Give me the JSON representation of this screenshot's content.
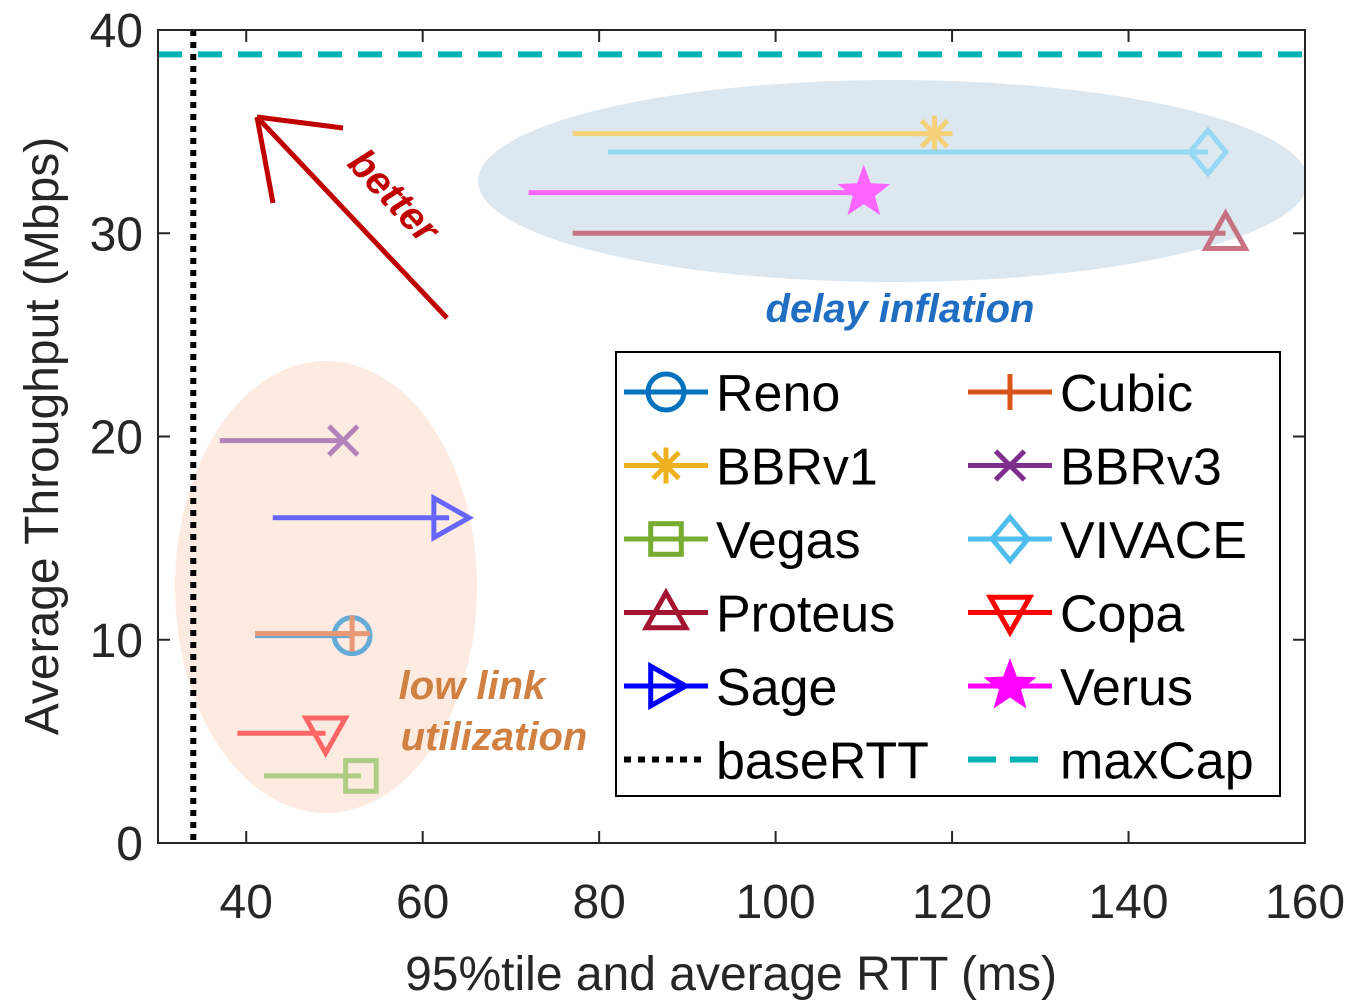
{
  "chart_data": {
    "type": "scatter",
    "xlabel": "95%tile and average RTT (ms)",
    "ylabel": "Average Throughput (Mbps)",
    "xlim": [
      30,
      160
    ],
    "ylim": [
      0,
      40
    ],
    "xticks": [
      40,
      60,
      80,
      100,
      120,
      140,
      160
    ],
    "yticks": [
      0,
      10,
      20,
      30,
      40
    ],
    "grid": false,
    "legend_position": "bottom-right",
    "series": [
      {
        "name": "Reno",
        "color": "#0072BD",
        "marker": "circle",
        "avg_rtt": 41,
        "p95_rtt": 52,
        "throughput": 10.2
      },
      {
        "name": "Cubic",
        "color": "#D95319",
        "marker": "plus",
        "avg_rtt": 41,
        "p95_rtt": 52,
        "throughput": 10.3
      },
      {
        "name": "BBRv1",
        "color": "#EDB120",
        "marker": "asterisk",
        "avg_rtt": 77,
        "p95_rtt": 118,
        "throughput": 34.9
      },
      {
        "name": "BBRv3",
        "color": "#7E2F8E",
        "marker": "x",
        "avg_rtt": 37,
        "p95_rtt": 51,
        "throughput": 19.8
      },
      {
        "name": "Vegas",
        "color": "#77AC30",
        "marker": "square",
        "avg_rtt": 42,
        "p95_rtt": 53,
        "throughput": 3.3
      },
      {
        "name": "VIVACE",
        "color": "#4DBEEE",
        "marker": "diamond",
        "avg_rtt": 81,
        "p95_rtt": 149,
        "throughput": 34.0
      },
      {
        "name": "Proteus",
        "color": "#A2142F",
        "marker": "triangle-up",
        "avg_rtt": 77,
        "p95_rtt": 151,
        "throughput": 30.0
      },
      {
        "name": "Copa",
        "color": "#FF0000",
        "marker": "triangle-down",
        "avg_rtt": 39,
        "p95_rtt": 49,
        "throughput": 5.4
      },
      {
        "name": "Sage",
        "color": "#0000FF",
        "marker": "triangle-right",
        "avg_rtt": 43,
        "p95_rtt": 63,
        "throughput": 16.0
      },
      {
        "name": "Verus",
        "color": "#FF00FF",
        "marker": "pentagram",
        "avg_rtt": 72,
        "p95_rtt": 110,
        "throughput": 32.0
      }
    ],
    "reference_lines": [
      {
        "name": "baseRTT",
        "orientation": "vertical",
        "value": 34,
        "color": "#000000",
        "style": "dotted"
      },
      {
        "name": "maxCap",
        "orientation": "horizontal",
        "value": 38.8,
        "color": "#00B3B3",
        "style": "dashed"
      }
    ],
    "annotations": [
      {
        "text": "better",
        "color": "#C00000"
      },
      {
        "text": "delay inflation",
        "color": "#1F6EC2"
      },
      {
        "text": "low link",
        "color": "#D08040"
      },
      {
        "text": "utilization",
        "color": "#D08040"
      }
    ],
    "regions": [
      {
        "name": "delay inflation",
        "color": "#DDE7EF"
      },
      {
        "name": "low link utilization",
        "color": "#FDEBE2"
      }
    ]
  }
}
